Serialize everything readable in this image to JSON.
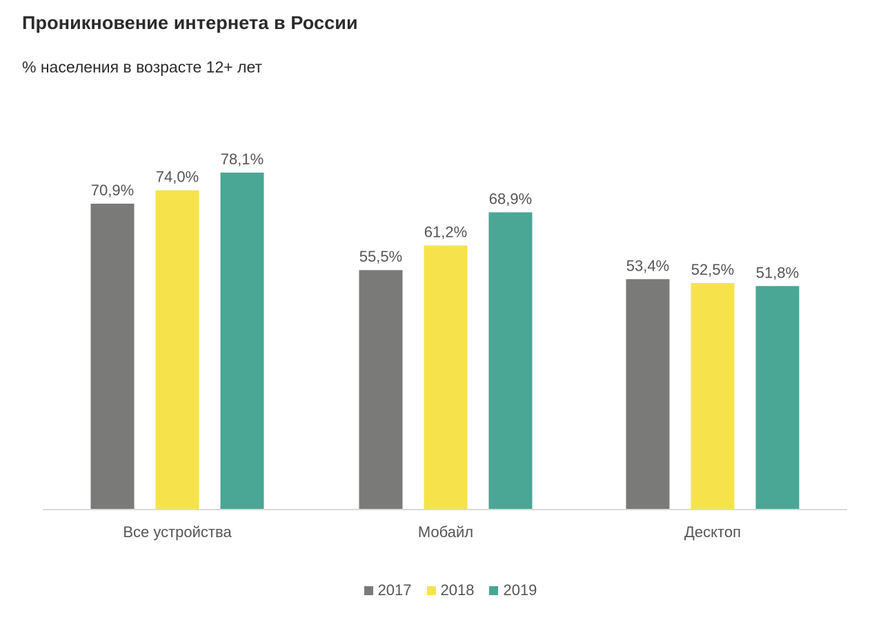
{
  "title": "Проникновение интернета в России",
  "subtitle": "% населения в возрасте 12+ лет",
  "chart_data": {
    "type": "bar",
    "categories": [
      "Все устройства",
      "Мобайл",
      "Десктоп"
    ],
    "series": [
      {
        "name": "2017",
        "color": "#7a7a79",
        "values": [
          70.9,
          55.5,
          53.4
        ],
        "labels": [
          "70,9%",
          "55,5%",
          "53,4%"
        ]
      },
      {
        "name": "2018",
        "color": "#f6e34b",
        "values": [
          74.0,
          61.2,
          52.5
        ],
        "labels": [
          "74,0%",
          "61,2%",
          "52,5%"
        ]
      },
      {
        "name": "2019",
        "color": "#4aa795",
        "values": [
          78.1,
          68.9,
          51.8
        ],
        "labels": [
          "78,1%",
          "68,9%",
          "51,8%"
        ]
      }
    ],
    "ylim": [
      0,
      78.1
    ],
    "grid": false,
    "legend_position": "bottom"
  }
}
